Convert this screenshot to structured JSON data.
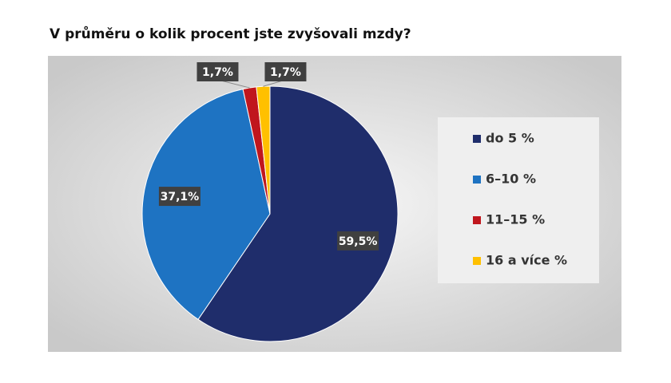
{
  "chart_data": {
    "type": "pie",
    "title": "V průměru o kolik procent jste zvyšovali mzdy?",
    "categories": [
      "do 5 %",
      "6–10 %",
      "11–15 %",
      "16 a více %"
    ],
    "values": [
      59.5,
      37.1,
      1.7,
      1.7
    ],
    "value_labels": [
      "59,5%",
      "37,1%",
      "1,7%",
      "1,7%"
    ],
    "colors": [
      "#1f2d6b",
      "#1e73c2",
      "#c0161d",
      "#ffc000"
    ],
    "legend": "right"
  }
}
